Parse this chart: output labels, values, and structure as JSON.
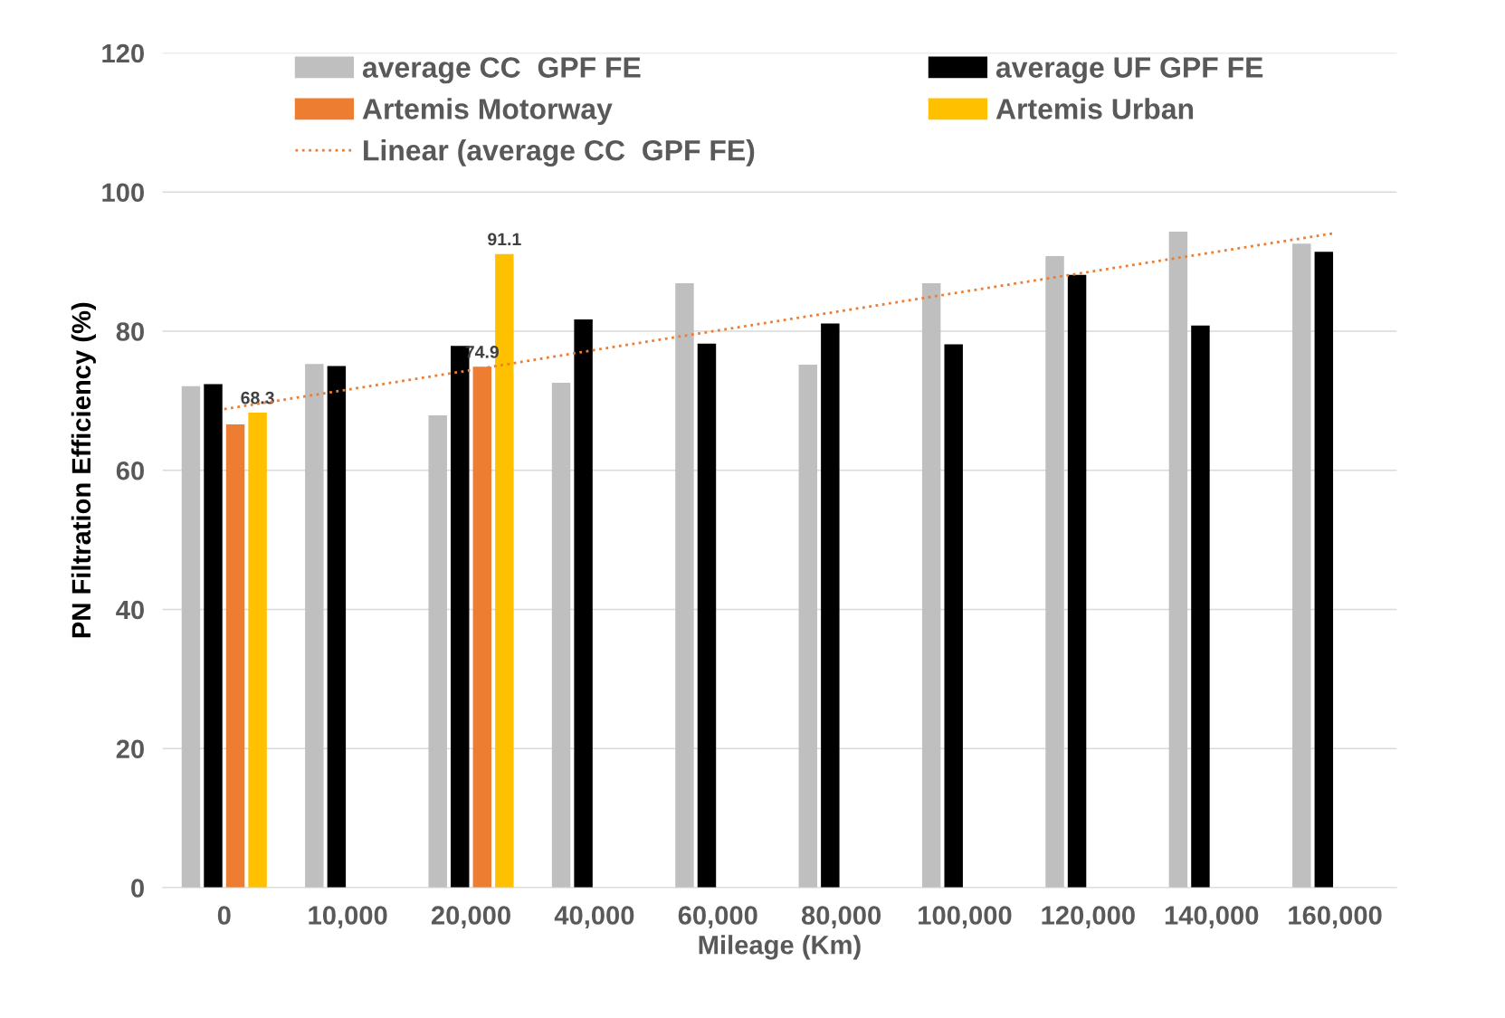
{
  "chart_data": {
    "type": "bar",
    "xlabel": "Mileage (Km)",
    "ylabel": "PN Filtration Efficiency (%)",
    "categories": [
      "0",
      "10,000",
      "20,000",
      "40,000",
      "60,000",
      "80,000",
      "100,000",
      "120,000",
      "140,000",
      "160,000"
    ],
    "series": [
      {
        "name": "average CC  GPF FE",
        "color": "#bfbfbf",
        "values": [
          72.1,
          75.3,
          67.9,
          72.6,
          86.9,
          75.2,
          86.9,
          90.8,
          94.3,
          92.6
        ]
      },
      {
        "name": "average UF GPF FE",
        "color": "#000000",
        "values": [
          72.4,
          75.0,
          77.9,
          81.7,
          78.2,
          81.1,
          78.1,
          88.1,
          80.8,
          91.4
        ]
      },
      {
        "name": "Artemis Motorway",
        "color": "#ed7d31",
        "values": [
          66.6,
          null,
          74.9,
          null,
          null,
          null,
          null,
          null,
          null,
          null
        ],
        "value_labels": [
          null,
          null,
          "74.9",
          null,
          null,
          null,
          null,
          null,
          null,
          null
        ]
      },
      {
        "name": "Artemis Urban",
        "color": "#ffc000",
        "values": [
          68.3,
          null,
          91.1,
          null,
          null,
          null,
          null,
          null,
          null,
          null
        ],
        "value_labels": [
          "68.3",
          null,
          "91.1",
          null,
          null,
          null,
          null,
          null,
          null,
          null
        ]
      },
      {
        "name": "Linear (average CC  GPF FE)",
        "type": "line",
        "color": "#ed7d31",
        "line_style": "dotted",
        "values": [
          68.8,
          71.6,
          74.4,
          77.3,
          80.1,
          82.9,
          85.7,
          88.5,
          91.3,
          94.1
        ]
      }
    ],
    "ylim": [
      0,
      120
    ],
    "yticks": [
      0,
      20,
      40,
      60,
      80,
      100,
      120
    ],
    "grid": "y",
    "legend": "top"
  }
}
